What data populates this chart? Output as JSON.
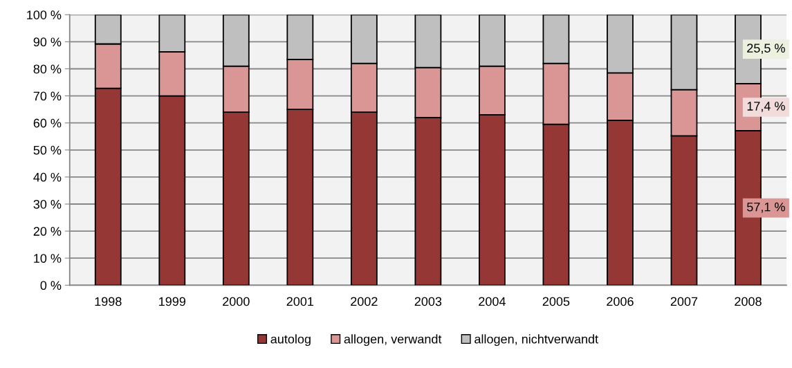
{
  "chart_data": {
    "type": "bar",
    "stacked": true,
    "categories": [
      "1998",
      "1999",
      "2000",
      "2001",
      "2002",
      "2003",
      "2004",
      "2005",
      "2006",
      "2007",
      "2008"
    ],
    "series": [
      {
        "name": "autolog",
        "color": "#953735",
        "values": [
          72.8,
          70,
          64,
          65,
          64,
          62,
          63,
          59.5,
          61,
          55.2,
          57.1
        ],
        "value_labels": [
          null,
          null,
          null,
          null,
          null,
          null,
          null,
          null,
          null,
          null,
          "57,1 %"
        ]
      },
      {
        "name": "allogen, verwandt",
        "color": "#d99694",
        "values": [
          16.4,
          16.3,
          17,
          18.5,
          18,
          18.5,
          18,
          22.5,
          17.5,
          17.1,
          17.4
        ],
        "value_labels": [
          null,
          null,
          null,
          null,
          null,
          null,
          null,
          null,
          null,
          null,
          "17,4 %"
        ]
      },
      {
        "name": "allogen, nichtverwandt",
        "color": "#bfbfbf",
        "values": [
          10.8,
          13.7,
          19,
          16.5,
          18,
          19.5,
          19,
          18,
          21.5,
          27.7,
          25.5
        ],
        "value_labels": [
          null,
          null,
          null,
          null,
          null,
          null,
          null,
          null,
          null,
          null,
          "25,5 %"
        ]
      }
    ],
    "ylim": [
      0,
      100
    ],
    "yticks": [
      {
        "value": 0,
        "label": "0 %"
      },
      {
        "value": 10,
        "label": "10 %"
      },
      {
        "value": 20,
        "label": "20 %"
      },
      {
        "value": 30,
        "label": "30 %"
      },
      {
        "value": 40,
        "label": "40 %"
      },
      {
        "value": 50,
        "label": "50 %"
      },
      {
        "value": 60,
        "label": "60 %"
      },
      {
        "value": 70,
        "label": "70 %"
      },
      {
        "value": 80,
        "label": "80 %"
      },
      {
        "value": 90,
        "label": "90 %"
      },
      {
        "value": 100,
        "label": "100 %"
      }
    ],
    "grid": "y",
    "legend": "bottom"
  }
}
